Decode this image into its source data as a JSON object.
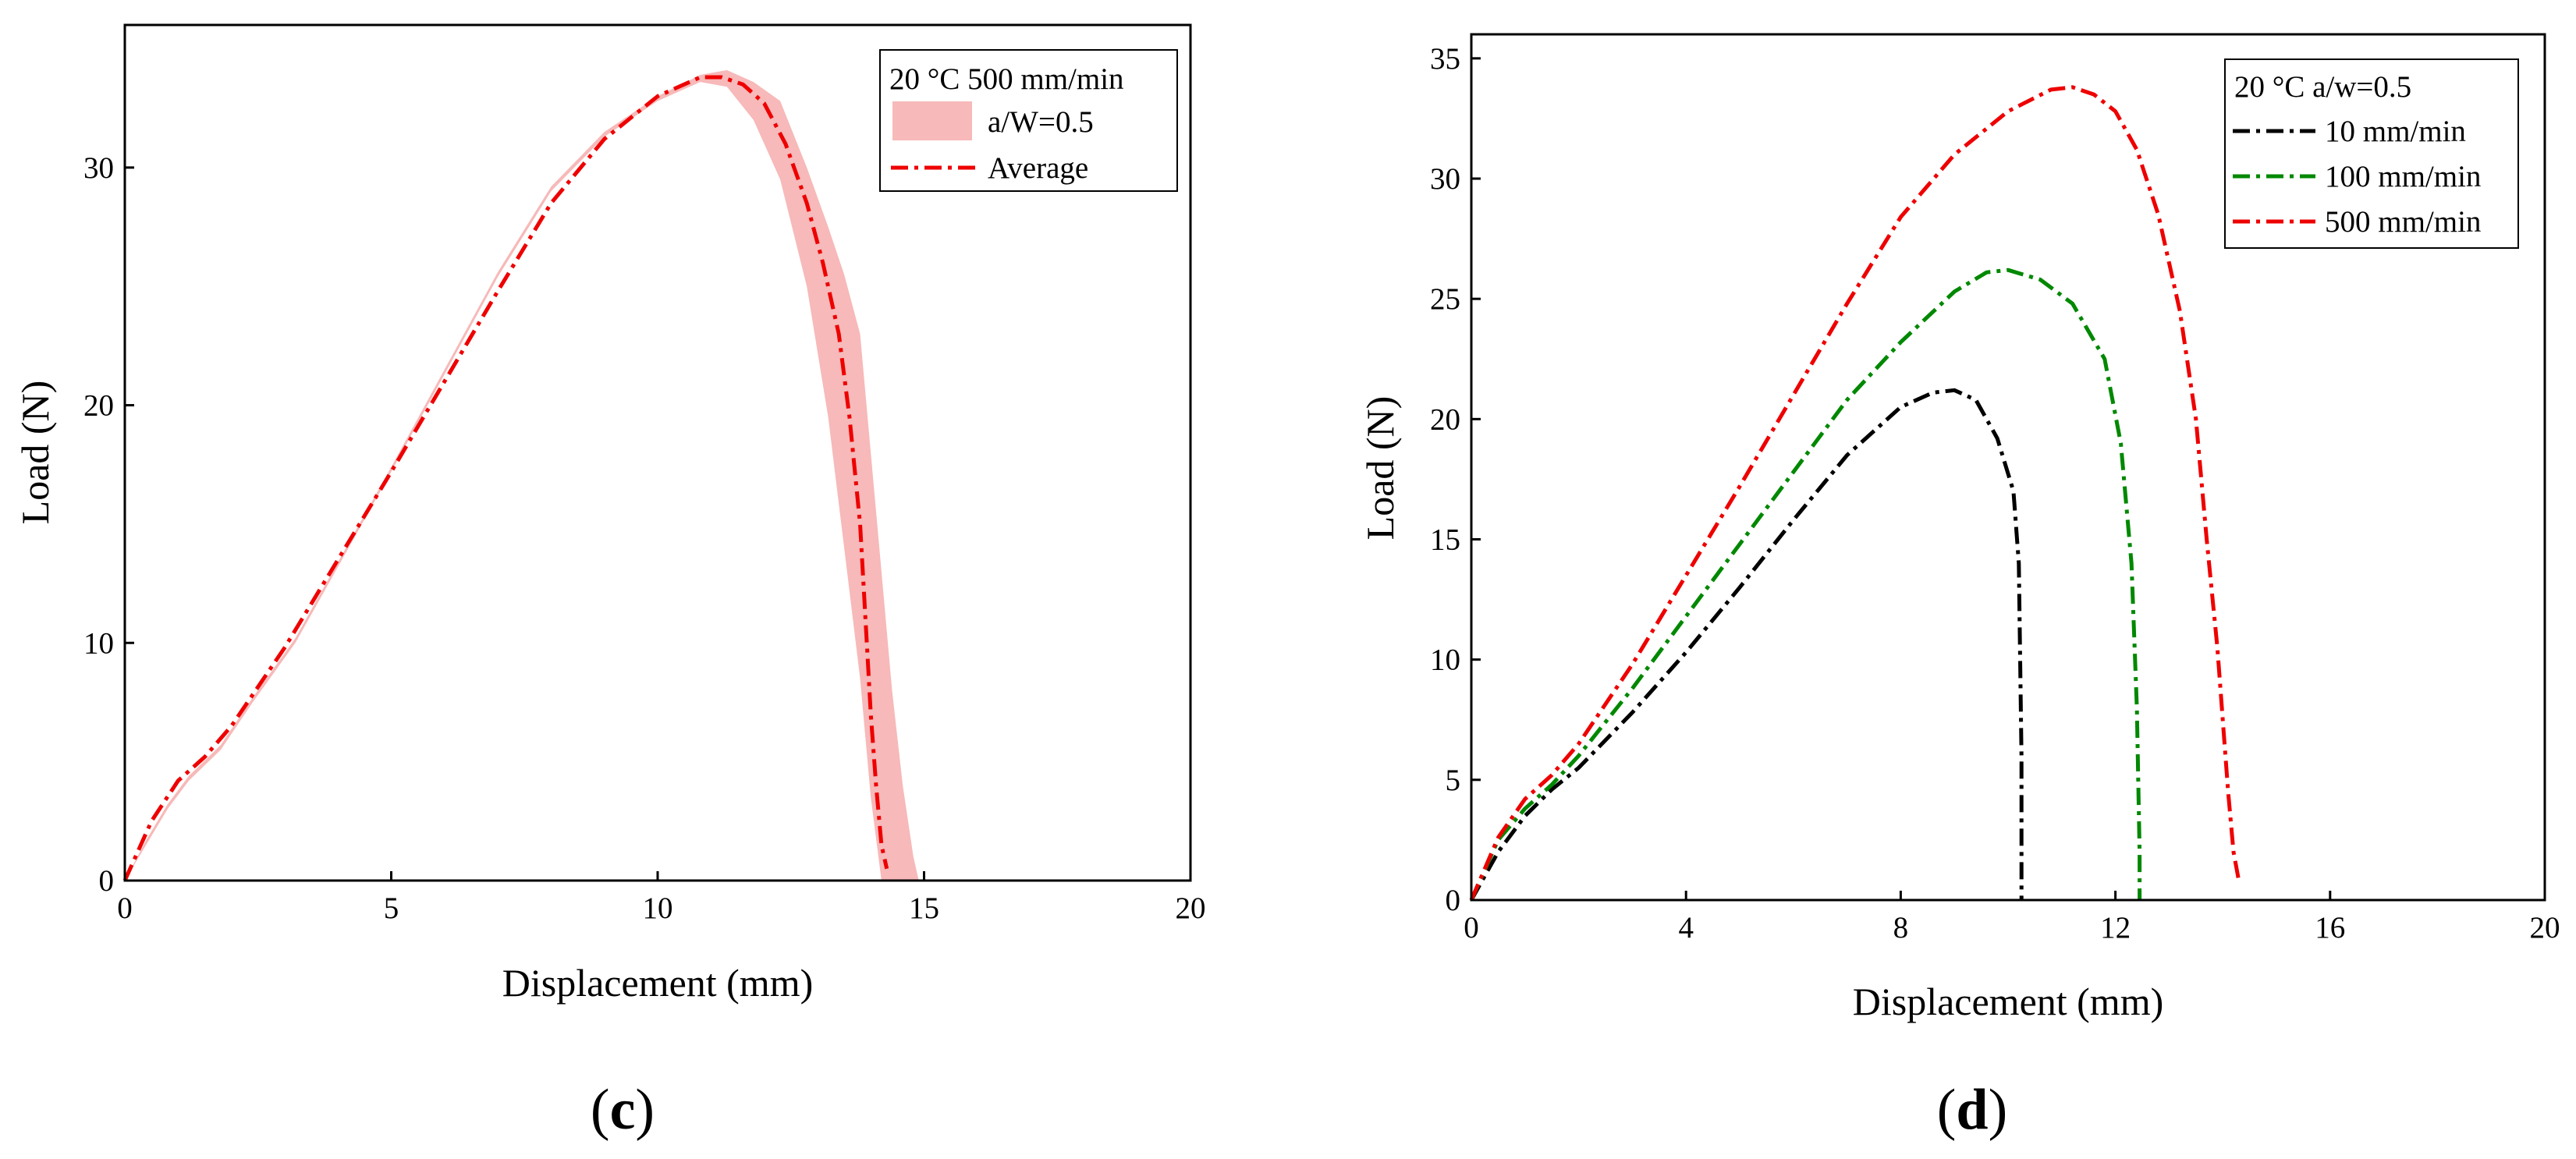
{
  "chart_data": [
    {
      "panel": "(c)",
      "panel_open": "(",
      "panel_letter": "c",
      "panel_close": ")",
      "type": "line",
      "xlabel": "Displacement (mm)",
      "ylabel": "Load (N)",
      "xlim": [
        0,
        20
      ],
      "ylim": [
        0,
        36
      ],
      "xticks": [
        0,
        5,
        10,
        15,
        20
      ],
      "yticks": [
        0,
        10,
        20,
        30
      ],
      "legend_title": "20 °C 500 mm/min",
      "legend_position": "top-right",
      "band": {
        "name": "a/W=0.5",
        "color": "#f7b9b9",
        "x": [
          0,
          0.4,
          0.8,
          1.2,
          1.8,
          2.4,
          3.2,
          4.0,
          5.0,
          6.0,
          7.0,
          8.0,
          9.0,
          10.0,
          10.8,
          11.3,
          11.8,
          12.3,
          12.8,
          13.2,
          13.5,
          13.8,
          14.0,
          14.2,
          14.4,
          14.6,
          14.8,
          14.9
        ],
        "lower": [
          0,
          1.5,
          3.0,
          4.2,
          5.5,
          7.5,
          10.0,
          13.2,
          17.2,
          21.3,
          25.4,
          29.0,
          31.3,
          32.8,
          33.6,
          33.4,
          32.0,
          29.5,
          25.0,
          19.5,
          14.0,
          8.5,
          3.5,
          0,
          0,
          0,
          0,
          0
        ],
        "upper": [
          0,
          1.7,
          3.2,
          4.4,
          5.7,
          7.7,
          10.2,
          13.4,
          17.4,
          21.5,
          25.6,
          29.2,
          31.5,
          33.0,
          33.9,
          34.1,
          33.6,
          32.8,
          30.0,
          27.5,
          25.5,
          23.0,
          18.0,
          13.0,
          8.0,
          4.0,
          1.0,
          0
        ]
      },
      "series": [
        {
          "name": "Average",
          "color": "#ee0000",
          "x": [
            0,
            0.5,
            1.0,
            1.5,
            2.0,
            3.0,
            4.0,
            5.0,
            6.0,
            7.0,
            8.0,
            9.0,
            10.0,
            10.8,
            11.2,
            11.6,
            12.0,
            12.4,
            12.8,
            13.1,
            13.4,
            13.6,
            13.8,
            13.9,
            14.0,
            14.1,
            14.2,
            14.3
          ],
          "y": [
            0,
            2.5,
            4.2,
            5.2,
            6.5,
            9.8,
            13.5,
            17.2,
            21.0,
            24.8,
            28.5,
            31.2,
            33.0,
            33.8,
            33.8,
            33.5,
            32.7,
            31.0,
            28.5,
            26.0,
            23.0,
            19.5,
            15.0,
            11.0,
            7.0,
            4.0,
            1.5,
            0.5
          ]
        }
      ]
    },
    {
      "panel": "(d)",
      "panel_open": "(",
      "panel_letter": "d",
      "panel_close": ")",
      "type": "line",
      "xlabel": "Displacement (mm)",
      "ylabel": "Load (N)",
      "xlim": [
        0,
        20
      ],
      "ylim": [
        0,
        36
      ],
      "xticks": [
        0,
        4,
        8,
        12,
        16,
        20
      ],
      "yticks": [
        0,
        5,
        10,
        15,
        20,
        25,
        30,
        35
      ],
      "legend_title": "20 °C  a/w=0.5",
      "legend_position": "top-right",
      "series": [
        {
          "name": "10 mm/min",
          "color": "#000000",
          "x": [
            0,
            0.5,
            1.0,
            1.5,
            2.0,
            3.0,
            4.0,
            5.0,
            6.0,
            7.0,
            8.0,
            8.6,
            9.0,
            9.4,
            9.8,
            10.1,
            10.2,
            10.25,
            10.25
          ],
          "y": [
            0,
            2.0,
            3.5,
            4.6,
            5.5,
            7.8,
            10.3,
            13.0,
            15.8,
            18.5,
            20.5,
            21.1,
            21.2,
            20.8,
            19.2,
            17.0,
            14.0,
            6.0,
            0
          ]
        },
        {
          "name": "100 mm/min",
          "color": "#008800",
          "x": [
            0,
            0.5,
            1.0,
            1.5,
            2.0,
            3.0,
            4.0,
            5.0,
            6.0,
            7.0,
            8.0,
            9.0,
            9.6,
            10.0,
            10.6,
            11.2,
            11.8,
            12.1,
            12.3,
            12.4,
            12.45,
            12.45
          ],
          "y": [
            0,
            2.5,
            3.8,
            4.8,
            6.0,
            8.8,
            11.8,
            14.8,
            17.8,
            20.8,
            23.2,
            25.3,
            26.1,
            26.2,
            25.8,
            24.8,
            22.5,
            19.0,
            14.0,
            8.0,
            2.0,
            0
          ]
        },
        {
          "name": "500 mm/min",
          "color": "#ee0000",
          "x": [
            0,
            0.5,
            1.0,
            1.5,
            2.0,
            3.0,
            4.0,
            5.0,
            6.0,
            7.0,
            8.0,
            9.0,
            10.0,
            10.8,
            11.2,
            11.6,
            12.0,
            12.4,
            12.8,
            13.2,
            13.5,
            13.7,
            13.9,
            14.0,
            14.1,
            14.2,
            14.3
          ],
          "y": [
            0,
            2.6,
            4.2,
            5.2,
            6.5,
            9.8,
            13.5,
            17.2,
            21.0,
            24.8,
            28.4,
            31.0,
            32.8,
            33.7,
            33.8,
            33.5,
            32.8,
            31.2,
            28.5,
            24.5,
            20.0,
            15.0,
            10.5,
            7.5,
            4.5,
            2.0,
            0.8
          ]
        }
      ]
    }
  ]
}
